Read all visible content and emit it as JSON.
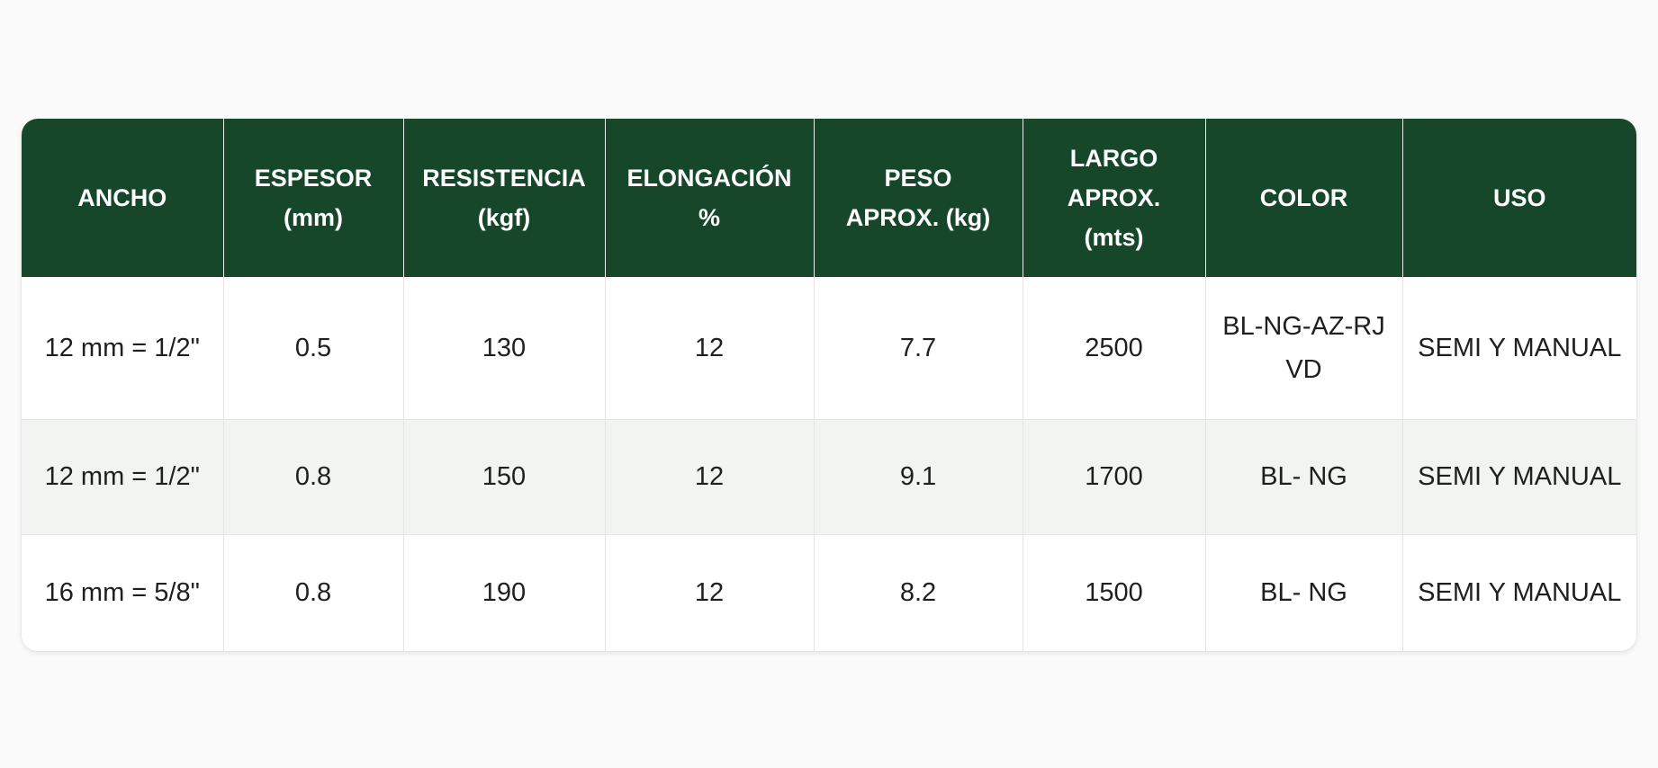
{
  "table": {
    "columns": [
      "ANCHO",
      "ESPESOR\n(mm)",
      "RESISTENCIA\n(kgf)",
      "ELONGACIÓN\n%",
      "PESO\nAPROX. (kg)",
      "LARGO\nAPROX.\n(mts)",
      "COLOR",
      "USO"
    ],
    "rows": [
      [
        "12 mm = 1/2\"",
        "0.5",
        "130",
        "12",
        "7.7",
        "2500",
        "BL-NG-AZ-RJ\nVD",
        "SEMI Y MANUAL"
      ],
      [
        "12 mm = 1/2\"",
        "0.8",
        "150",
        "12",
        "9.1",
        "1700",
        "BL- NG",
        "SEMI Y MANUAL"
      ],
      [
        "16 mm = 5/8\"",
        "0.8",
        "190",
        "12",
        "8.2",
        "1500",
        "BL- NG",
        "SEMI Y MANUAL"
      ]
    ]
  },
  "colors": {
    "header_background": "#17472b",
    "header_text": "#ffffff",
    "striped_row": "#f1f4f1"
  }
}
